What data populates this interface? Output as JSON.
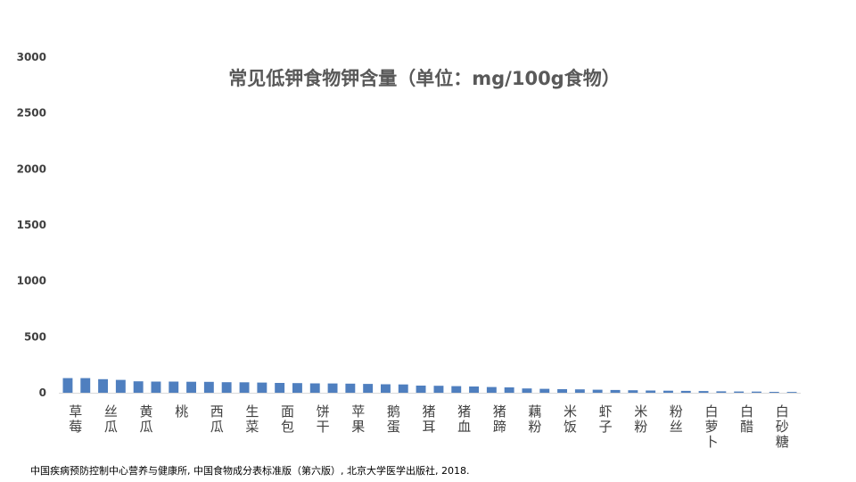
{
  "source_note": "中国疾病预防控制中心营养与健康所, 中国食物成分表标准版（第六版）, 北京大学医学出版社, 2018.",
  "colors": {
    "bar": "#4f7fbf",
    "title": "#595959",
    "text": "#404040"
  },
  "chart_data": {
    "type": "bar",
    "title": "常见低钾食物钾含量（单位：mg/100g食物）",
    "xlabel": "",
    "ylabel": "",
    "ylim": [
      0,
      3000
    ],
    "yticks": [
      0,
      500,
      1000,
      1500,
      2000,
      2500,
      3000
    ],
    "grid": false,
    "legend": "none",
    "categories": [
      "草莓",
      "",
      "丝瓜",
      "",
      "黄瓜",
      "",
      "桃",
      "",
      "西瓜",
      "",
      "生菜",
      "",
      "面包",
      "",
      "饼干",
      "",
      "苹果",
      "",
      "鹅蛋",
      "",
      "猪耳",
      "",
      "猪血",
      "",
      "猪蹄",
      "",
      "藕粉",
      "",
      "米饭",
      "",
      "虾子",
      "",
      "米粉",
      "",
      "粉丝",
      "",
      "白萝卜",
      "",
      "白醋",
      "",
      "白砂糖",
      ""
    ],
    "values": [
      131,
      131,
      121,
      115,
      102,
      100,
      100,
      98,
      97,
      94,
      93,
      91,
      88,
      86,
      84,
      83,
      81,
      79,
      76,
      74,
      64,
      62,
      59,
      56,
      51,
      48,
      38,
      35,
      32,
      30,
      27,
      25,
      22,
      20,
      18,
      17,
      15,
      13,
      11,
      10,
      8,
      7
    ]
  }
}
